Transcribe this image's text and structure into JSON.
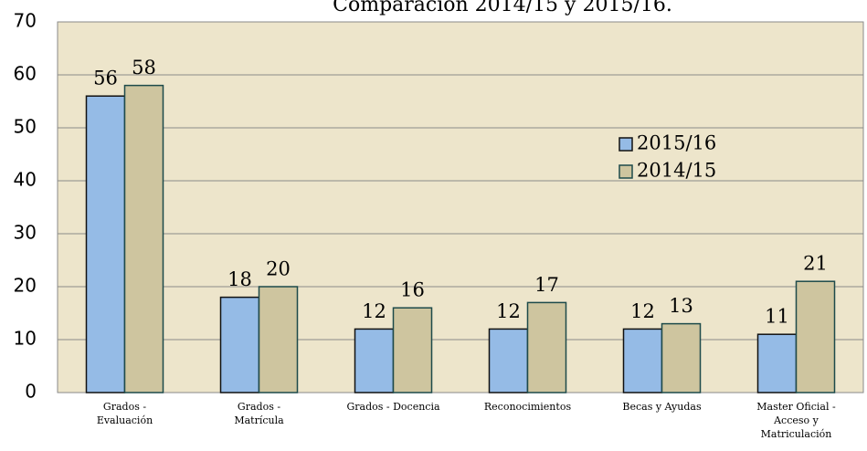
{
  "chart_data": {
    "type": "bar",
    "title": "Comparación 2014/15 y 2015/16.",
    "categories": [
      "Grados - Evaluación",
      "Grados - Matrícula",
      "Grados - Docencia",
      "Reconocimientos",
      "Becas y Ayudas",
      "Master Oficial - Acceso y Matriculación"
    ],
    "series": [
      {
        "name": "2015/16",
        "color": "#95bbe6",
        "values": [
          56,
          18,
          12,
          12,
          12,
          11
        ]
      },
      {
        "name": "2014/15",
        "color": "#cec59f",
        "values": [
          58,
          20,
          16,
          17,
          13,
          21
        ]
      }
    ],
    "ylim": [
      0,
      70
    ],
    "yticks": [
      0,
      10,
      20,
      30,
      40,
      50,
      60,
      70
    ],
    "grid": true,
    "legend": "right"
  }
}
